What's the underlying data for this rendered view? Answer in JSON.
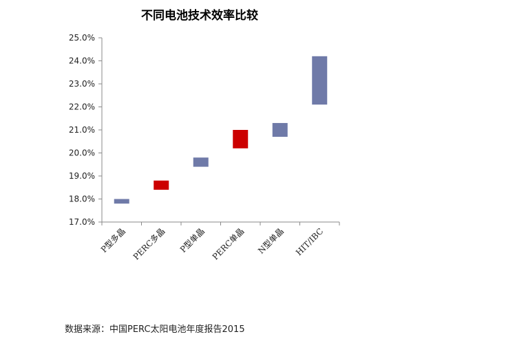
{
  "chart_data": {
    "type": "floating-bar",
    "title": "不同电池技术效率比较",
    "categories": [
      "P型多晶",
      "PERC多晶",
      "P型单晶",
      "PERC单晶",
      "N型单晶",
      "HIT/IBC"
    ],
    "ranges": [
      {
        "low": 17.8,
        "high": 18.0,
        "color": "#6f7aa8"
      },
      {
        "low": 18.4,
        "high": 18.8,
        "color": "#cc0000"
      },
      {
        "low": 19.4,
        "high": 19.8,
        "color": "#6f7aa8"
      },
      {
        "low": 20.2,
        "high": 21.0,
        "color": "#cc0000"
      },
      {
        "low": 20.7,
        "high": 21.3,
        "color": "#6f7aa8"
      },
      {
        "low": 22.1,
        "high": 24.2,
        "color": "#6f7aa8"
      }
    ],
    "ylim": [
      17.0,
      25.0
    ],
    "yticks": [
      "17.0%",
      "18.0%",
      "19.0%",
      "20.0%",
      "21.0%",
      "22.0%",
      "23.0%",
      "24.0%",
      "25.0%"
    ],
    "grid": false,
    "legend": "none"
  },
  "source_note": "数据来源：中国PERC太阳电池年度报告2015"
}
